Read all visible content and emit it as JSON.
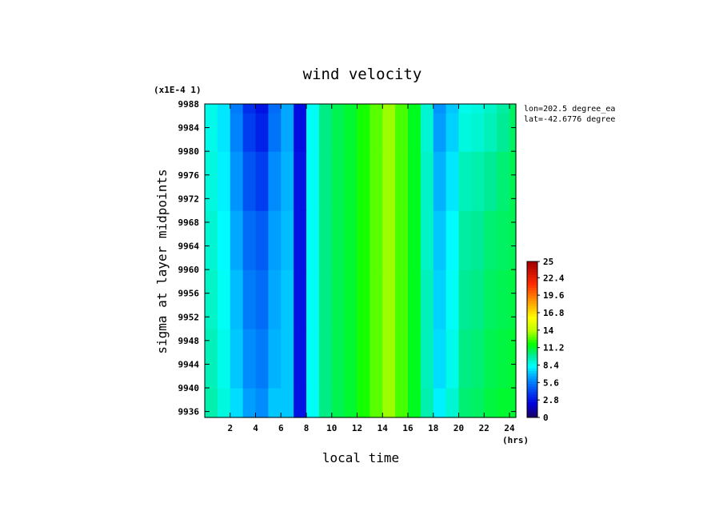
{
  "chart_data": {
    "type": "heatmap",
    "title": "wind velocity",
    "xlabel": "local time",
    "ylabel": "sigma at layer midpoints",
    "x_unit_label": "(hrs)",
    "y_scale_label": "(x1E-4 1)",
    "annotations": [
      "lon=202.5 degree_ea",
      "lat=-42.6776 degree"
    ],
    "x_ticks": [
      "2",
      "4",
      "6",
      "8",
      "10",
      "12",
      "14",
      "16",
      "18",
      "20",
      "22",
      "24"
    ],
    "y_ticks": [
      "9936",
      "9940",
      "9944",
      "9948",
      "9952",
      "9956",
      "9960",
      "9964",
      "9968",
      "9972",
      "9976",
      "9980",
      "9984",
      "9988"
    ],
    "xlim": [
      0.0,
      24.5
    ],
    "ylim": [
      9988,
      9935
    ],
    "colorbar": {
      "min": 0,
      "max": 25,
      "tick_labels": [
        "0",
        "2.8",
        "5.6",
        "8.4",
        "11.2",
        "14",
        "16.8",
        "19.6",
        "22.4",
        "25"
      ]
    },
    "x": [
      0.5,
      1.5,
      2.5,
      3.5,
      4.5,
      5.5,
      6.5,
      7.5,
      8.5,
      9.5,
      10.5,
      11.5,
      12.5,
      13.5,
      14.5,
      15.5,
      16.5,
      17.5,
      18.5,
      19.5,
      20.5,
      21.5,
      22.5,
      23.5,
      24.5
    ],
    "y": [
      9935,
      9945,
      9955,
      9965,
      9975,
      9985,
      9988
    ],
    "z": [
      [
        9.6,
        8.8,
        7.6,
        6.4,
        6.0,
        7.2,
        7.2,
        2.8,
        8.4,
        10.2,
        10.8,
        11.2,
        12.0,
        12.8,
        13.6,
        12.6,
        11.4,
        9.6,
        8.0,
        9.0,
        10.4,
        10.6,
        11.0,
        11.2,
        11.2
      ],
      [
        9.4,
        8.6,
        7.2,
        6.0,
        5.6,
        6.8,
        7.2,
        2.8,
        8.4,
        10.2,
        10.8,
        11.2,
        12.0,
        12.8,
        13.6,
        12.6,
        11.4,
        9.4,
        7.6,
        8.6,
        10.2,
        10.4,
        10.8,
        11.0,
        11.2
      ],
      [
        9.2,
        8.4,
        7.0,
        5.6,
        5.2,
        6.6,
        7.2,
        2.8,
        8.4,
        10.2,
        10.8,
        11.2,
        12.0,
        12.8,
        13.6,
        12.6,
        11.4,
        9.4,
        7.4,
        8.4,
        10.0,
        10.2,
        10.6,
        10.8,
        11.0
      ],
      [
        9.0,
        8.2,
        6.6,
        5.2,
        4.8,
        6.4,
        7.0,
        2.8,
        8.4,
        10.2,
        10.8,
        11.2,
        12.0,
        12.8,
        13.6,
        12.6,
        11.4,
        9.2,
        7.2,
        8.2,
        9.8,
        10.0,
        10.4,
        10.6,
        10.8
      ],
      [
        8.8,
        8.0,
        6.2,
        4.6,
        4.0,
        6.0,
        6.8,
        2.8,
        8.4,
        10.2,
        10.8,
        11.2,
        12.0,
        12.8,
        13.6,
        12.6,
        11.4,
        9.2,
        6.8,
        7.8,
        9.4,
        9.6,
        10.0,
        10.4,
        10.8
      ],
      [
        8.6,
        7.8,
        5.8,
        4.0,
        3.2,
        5.4,
        6.6,
        2.6,
        8.4,
        10.2,
        10.8,
        11.2,
        12.0,
        12.8,
        13.6,
        12.6,
        11.4,
        9.0,
        6.4,
        7.4,
        8.8,
        9.0,
        9.4,
        10.0,
        10.6
      ],
      [
        8.6,
        7.8,
        5.6,
        3.6,
        2.8,
        5.2,
        6.6,
        2.6,
        8.4,
        10.2,
        10.8,
        11.2,
        12.0,
        12.8,
        13.6,
        12.6,
        11.4,
        9.0,
        6.2,
        7.2,
        8.6,
        8.8,
        9.2,
        9.8,
        10.6
      ]
    ]
  }
}
